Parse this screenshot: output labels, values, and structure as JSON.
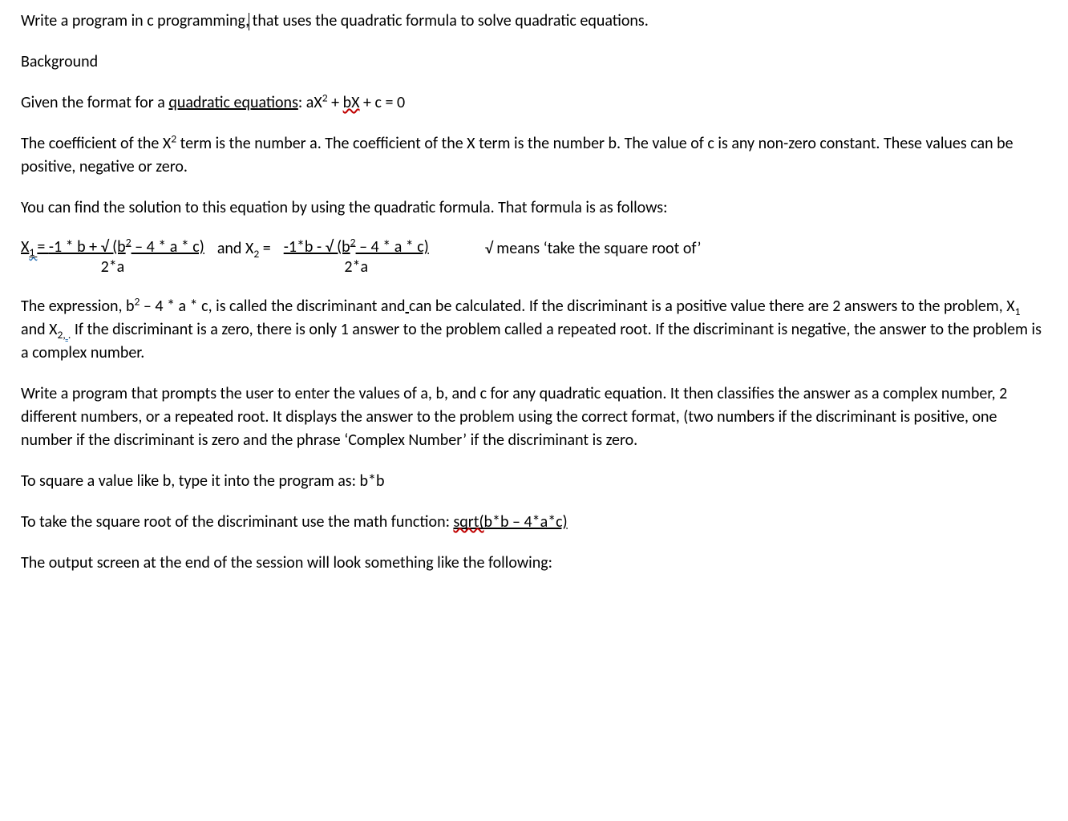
{
  "doc": {
    "background_color": "#ffffff",
    "text_color": "#000000",
    "font_family": "Calibri",
    "font_size_pt": 15,
    "wavy_red": "#c00000",
    "wavy_blue": "#2e74b5"
  },
  "p1": {
    "a": "Write a program in c programming,",
    "b": " that uses the quadratic formula to solve quadratic equations."
  },
  "p2": "Background",
  "p3": {
    "a": "Given the format for a ",
    "b": "quadratic equations",
    "c": ":    aX",
    "d": " + ",
    "e": "bX",
    "f": " + c = 0"
  },
  "p4": {
    "a": "The coefficient of the X",
    "b": " term is the number a.  The coefficient of the X term is the number b.  The value of c is any non-zero constant.  These values can be positive, negative or zero."
  },
  "p5": "You can find the solution to this equation by using the quadratic formula.  That formula is as follows:",
  "formula": {
    "x1_label": "X",
    "x1_sub": "1 ",
    "eq": "= ",
    "num1": "-1 * b + √ (b",
    "num1_tail": " – 4 * a * c)",
    "den": "2*a",
    "and": "   and X",
    "x2_sub": "2",
    "eq2": " = ",
    "num2": "-1*b - √ (b",
    "num2_tail": " – 4 * a * c) ",
    "note": "√ means ‘take the square root of’"
  },
  "p6": {
    "a": "The expression, b",
    "b": " – 4 * a * c, is called the discriminan",
    "t1": "t and",
    "sp": " ",
    "c": "can be calculated.  If the discriminant is a positive value there are 2 answers to the problem, X",
    "s1": "1",
    "d": " and X",
    "s2": "2",
    "comma": ", ",
    "dot": ".",
    "e": "  If the discriminant is a zero, there is only 1 answer to the problem called a repeated root.  If the discriminant is negative, the answer to the problem is a complex number."
  },
  "p7": "Write a program that prompts the user to enter the values of a, b, and c for any quadratic equation.  It then classifies the answer as a complex number, 2 different numbers, or a repeated root.  It displays the answer to the problem using the correct format, (two numbers if the discriminant is positive, one number if the discriminant is zero and the phrase ‘Complex Number’ if the discriminant is zero.",
  "p8": "To square a value like b, type it into the program as:  b*b",
  "p9": {
    "a": "To take the square root of the discriminant use the math function:   ",
    "b": "sqrt(",
    "c": "b*b – 4*a*c)"
  },
  "p10": "The output screen at the end of the session will look something like the following:"
}
